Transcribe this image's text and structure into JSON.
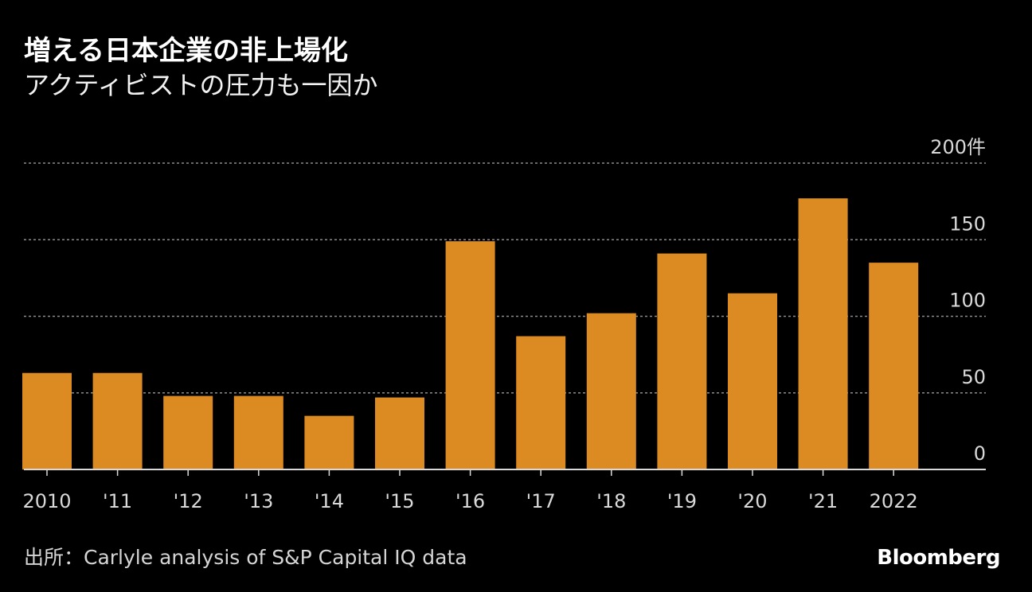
{
  "header": {
    "title": "増える日本企業の非上場化",
    "subtitle": "アクティビストの圧力も一因か"
  },
  "footer": {
    "source": "出所：Carlyle analysis of S&P Capital IQ data",
    "logo": "Bloomberg"
  },
  "colors": {
    "background": "#000000",
    "bar": "#dc8a22",
    "grid": "#8c8c8c",
    "axis": "#d9d9d9"
  },
  "chart_data": {
    "type": "bar",
    "title": "増える日本企業の非上場化",
    "subtitle": "アクティビストの圧力も一因か",
    "xlabel": "",
    "ylabel": "件",
    "ylim": [
      0,
      200
    ],
    "yticks": [
      0,
      50,
      100,
      150,
      200
    ],
    "ytick_labels": [
      "0",
      "50",
      "100",
      "150",
      "200件"
    ],
    "categories": [
      "2010",
      "'11",
      "'12",
      "'13",
      "'14",
      "'15",
      "'16",
      "'17",
      "'18",
      "'19",
      "'20",
      "'21",
      "2022"
    ],
    "values": [
      63,
      63,
      48,
      48,
      35,
      47,
      149,
      87,
      102,
      141,
      115,
      177,
      135
    ],
    "grid": true,
    "legend": "none"
  }
}
